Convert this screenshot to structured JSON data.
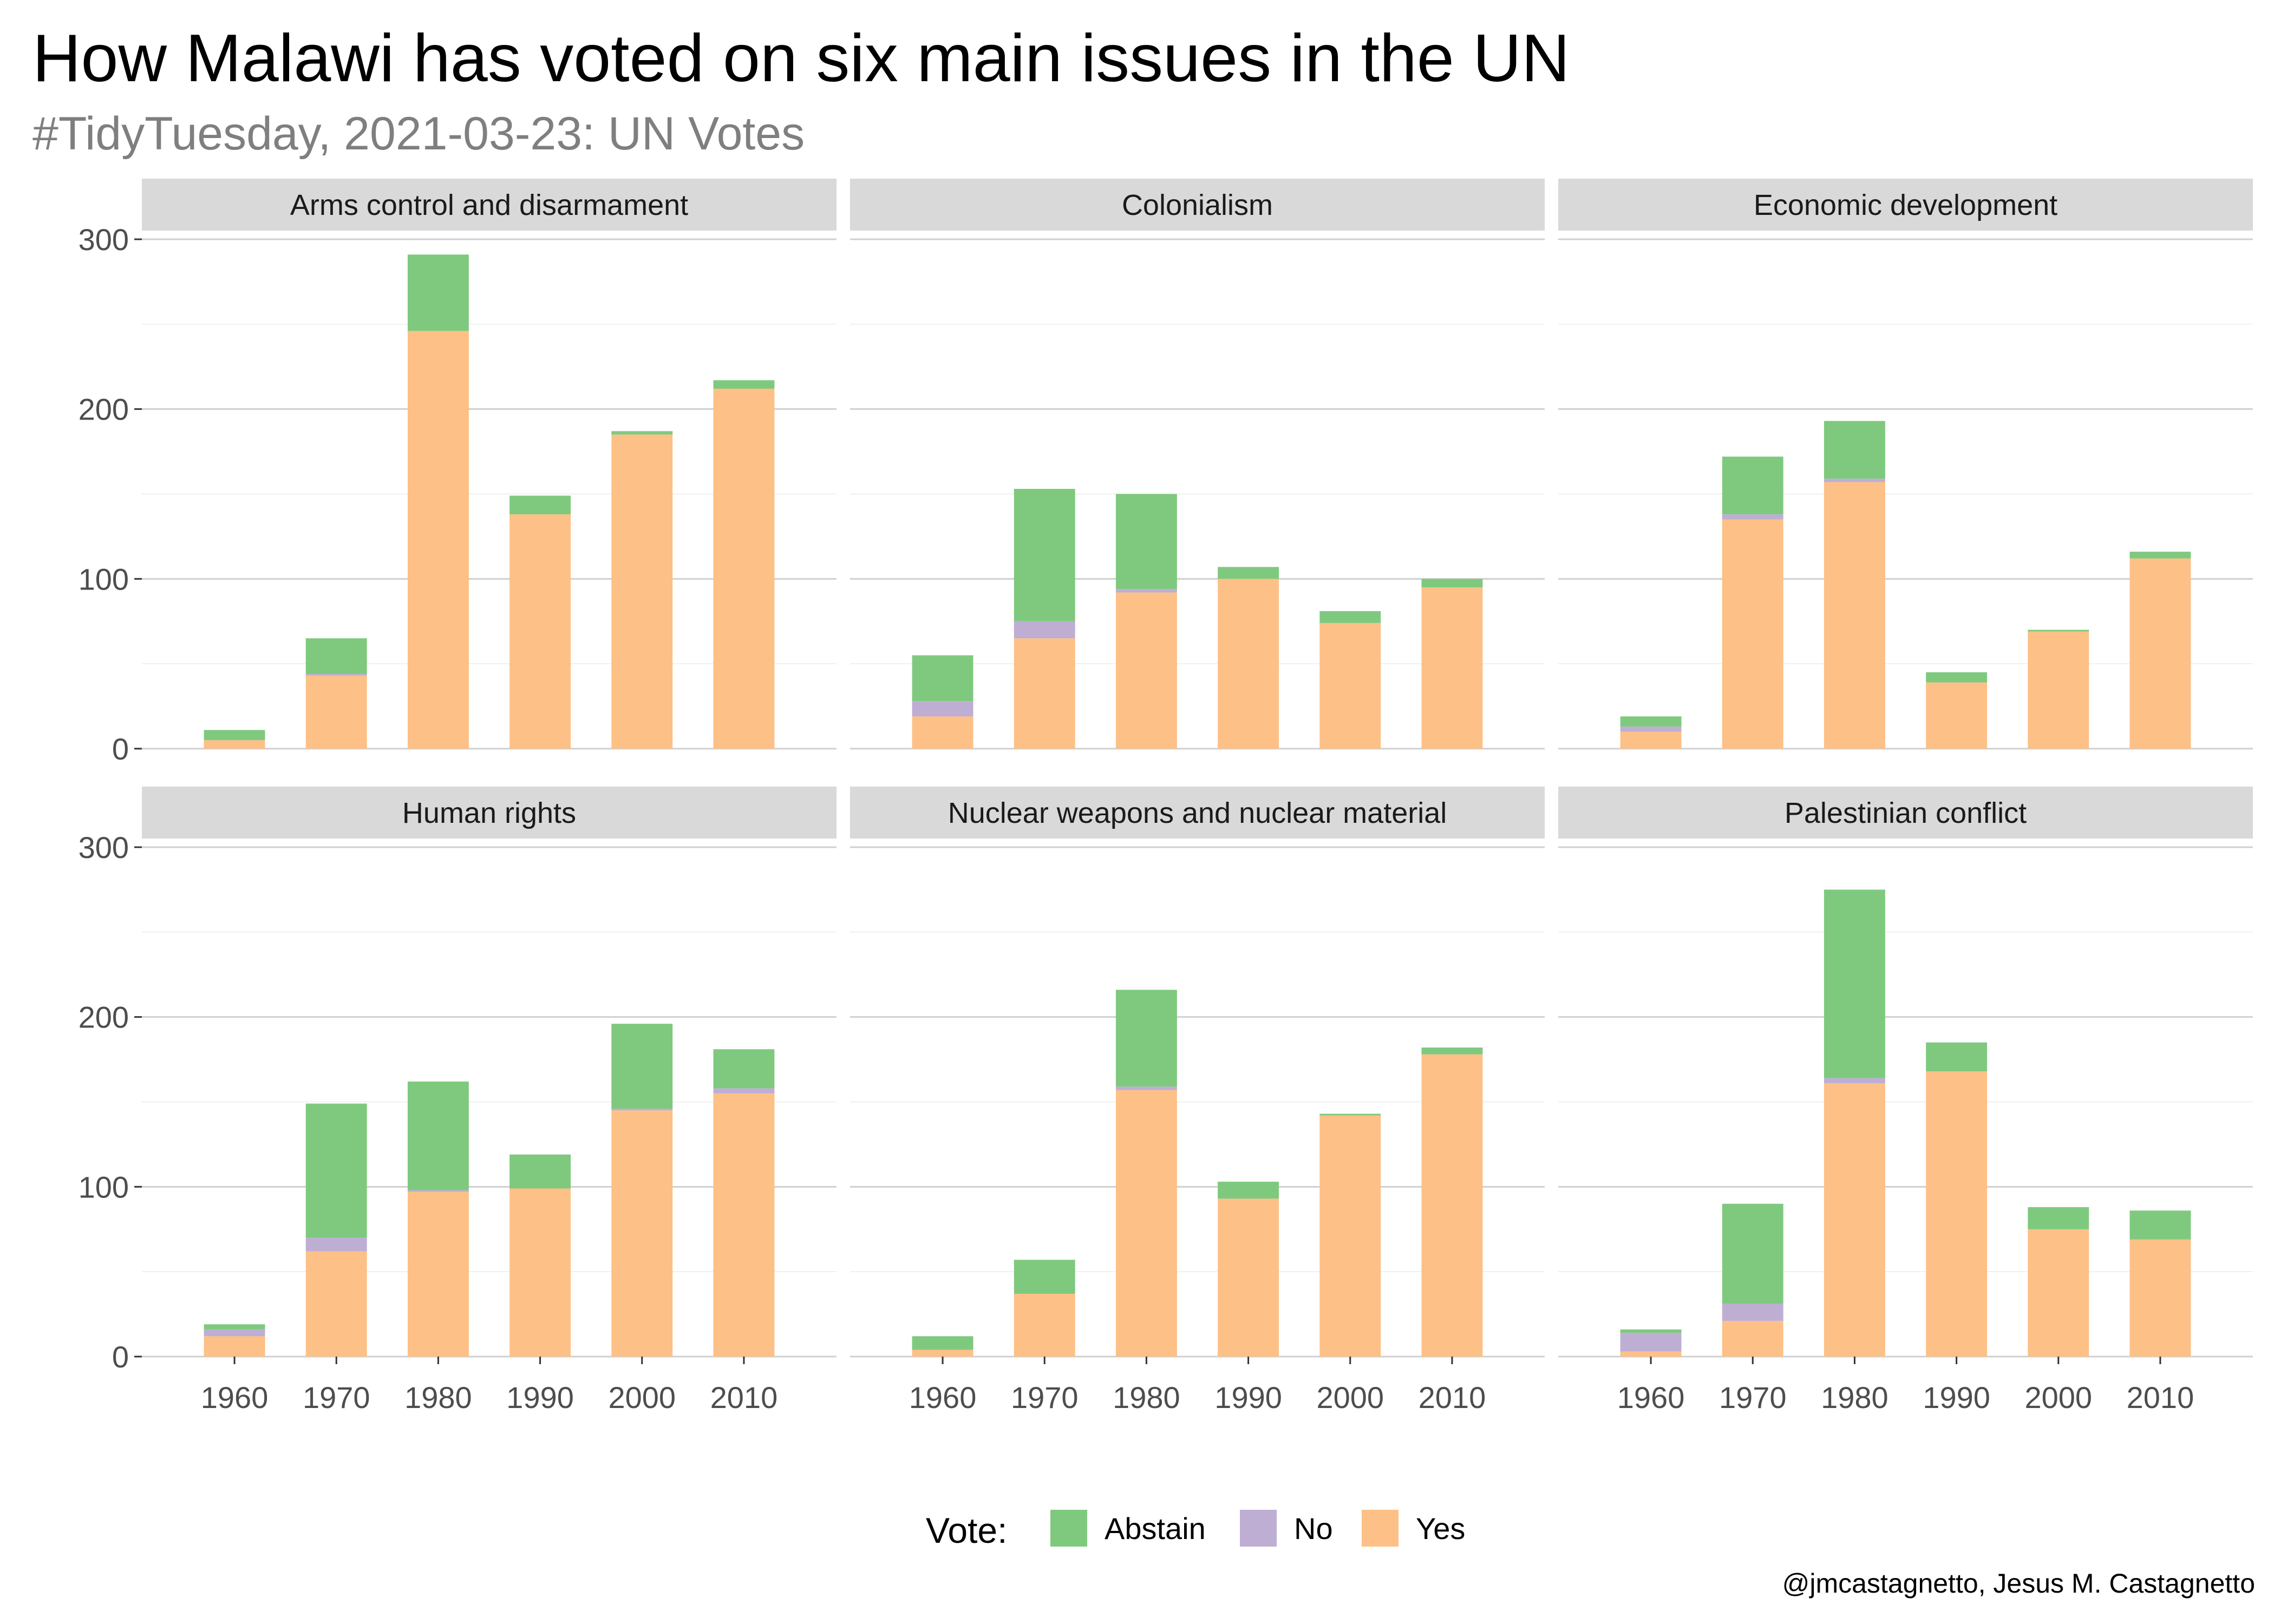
{
  "title": "How Malawi has voted on six main issues in the UN",
  "subtitle": "#TidyTuesday, 2021-03-23: UN Votes",
  "caption": "@jmcastagnetto, Jesus M. Castagnetto",
  "legend": {
    "title": "Vote:",
    "position": "bottom",
    "items": [
      {
        "label": "Abstain",
        "color": "#7fc97f"
      },
      {
        "label": "No",
        "color": "#beaed4"
      },
      {
        "label": "Yes",
        "color": "#fdc086"
      }
    ]
  },
  "chart_data": {
    "type": "bar",
    "stacked": true,
    "facet_layout": "3 columns x 2 rows",
    "ylim": [
      0,
      300
    ],
    "y_ticks": [
      0,
      100,
      200,
      300
    ],
    "categories": [
      "1960",
      "1970",
      "1980",
      "1990",
      "2000",
      "2010"
    ],
    "grid": true,
    "series_order": [
      "Yes",
      "No",
      "Abstain"
    ],
    "panels": [
      {
        "name": "Arms control and disarmament",
        "series": [
          {
            "name": "Yes",
            "values": [
              5,
              43,
              246,
              138,
              185,
              212
            ]
          },
          {
            "name": "No",
            "values": [
              0,
              1,
              0,
              0,
              0,
              0
            ]
          },
          {
            "name": "Abstain",
            "values": [
              6,
              21,
              45,
              11,
              2,
              5
            ]
          }
        ]
      },
      {
        "name": "Colonialism",
        "series": [
          {
            "name": "Yes",
            "values": [
              19,
              65,
              92,
              100,
              74,
              95
            ]
          },
          {
            "name": "No",
            "values": [
              9,
              10,
              2,
              0,
              0,
              0
            ]
          },
          {
            "name": "Abstain",
            "values": [
              27,
              78,
              56,
              7,
              7,
              5
            ]
          }
        ]
      },
      {
        "name": "Economic development",
        "series": [
          {
            "name": "Yes",
            "values": [
              10,
              135,
              157,
              39,
              69,
              112
            ]
          },
          {
            "name": "No",
            "values": [
              3,
              3,
              2,
              0,
              0,
              0
            ]
          },
          {
            "name": "Abstain",
            "values": [
              6,
              34,
              34,
              6,
              1,
              4
            ]
          }
        ]
      },
      {
        "name": "Human rights",
        "series": [
          {
            "name": "Yes",
            "values": [
              12,
              62,
              97,
              99,
              145,
              155
            ]
          },
          {
            "name": "No",
            "values": [
              4,
              8,
              1,
              0,
              1,
              3
            ]
          },
          {
            "name": "Abstain",
            "values": [
              3,
              79,
              64,
              20,
              50,
              23
            ]
          }
        ]
      },
      {
        "name": "Nuclear weapons and nuclear material",
        "series": [
          {
            "name": "Yes",
            "values": [
              4,
              37,
              157,
              93,
              142,
              178
            ]
          },
          {
            "name": "No",
            "values": [
              0,
              0,
              2,
              0,
              0,
              0
            ]
          },
          {
            "name": "Abstain",
            "values": [
              8,
              20,
              57,
              10,
              1,
              4
            ]
          }
        ]
      },
      {
        "name": "Palestinian conflict",
        "series": [
          {
            "name": "Yes",
            "values": [
              3,
              21,
              161,
              168,
              75,
              69
            ]
          },
          {
            "name": "No",
            "values": [
              11,
              10,
              3,
              0,
              0,
              0
            ]
          },
          {
            "name": "Abstain",
            "values": [
              2,
              59,
              111,
              17,
              13,
              17
            ]
          }
        ]
      }
    ]
  }
}
